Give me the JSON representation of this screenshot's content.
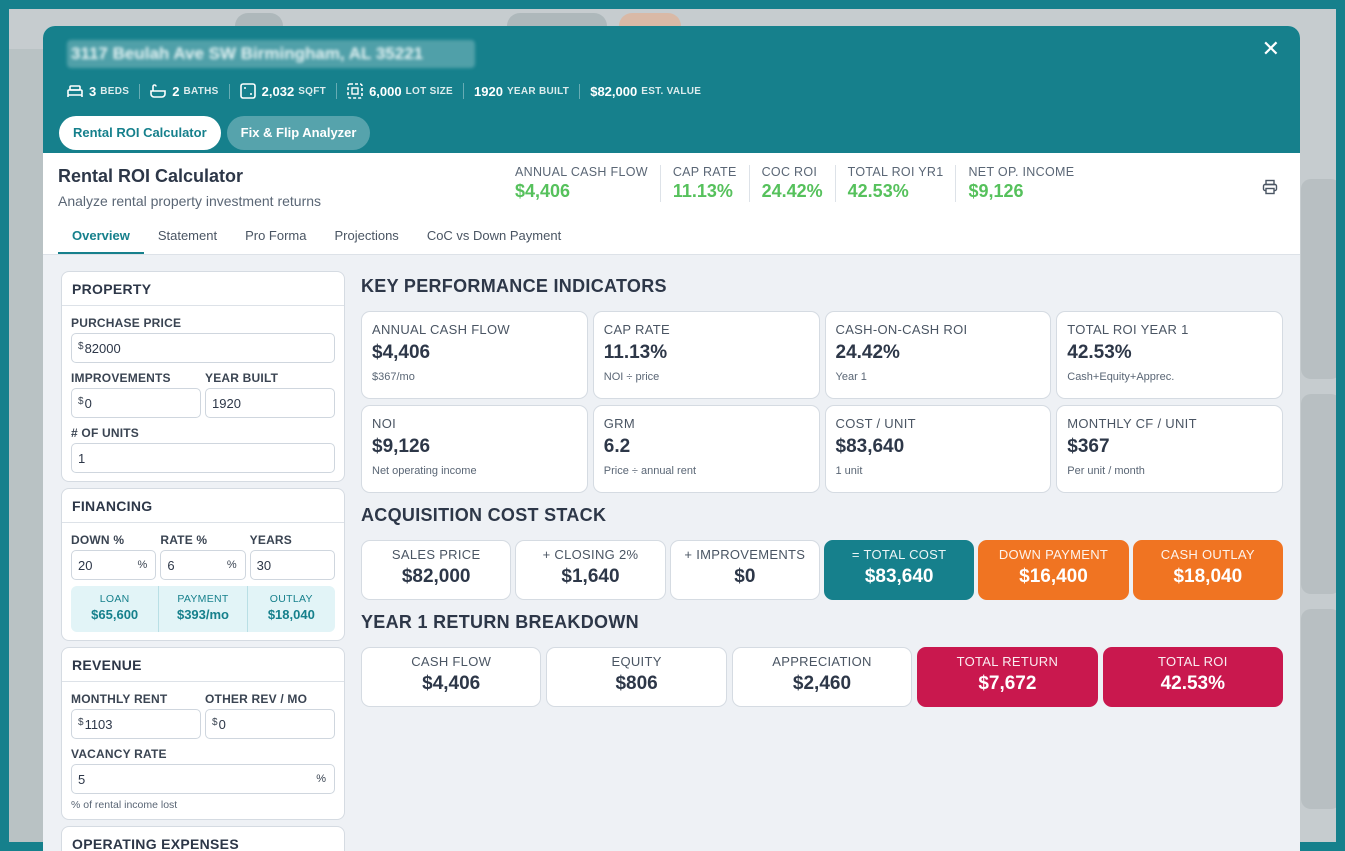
{
  "header": {
    "address": "3117 Beulah Ave SW Birmingham, AL 35221",
    "close_icon": "close-icon",
    "stats": [
      {
        "icon": "bed-icon",
        "value": "3",
        "unit": "BEDS"
      },
      {
        "icon": "bath-icon",
        "value": "2",
        "unit": "BATHS"
      },
      {
        "icon": "sqft-icon",
        "value": "2,032",
        "unit": "SQFT"
      },
      {
        "icon": "lot-icon",
        "value": "6,000",
        "unit": "LOT SIZE"
      },
      {
        "icon": "",
        "value": "1920",
        "unit": "YEAR BUILT"
      },
      {
        "icon": "",
        "value": "$82,000",
        "unit": "EST. VALUE"
      }
    ],
    "tabs": [
      {
        "label": "Rental ROI Calculator",
        "active": true
      },
      {
        "label": "Fix & Flip Analyzer",
        "active": false
      }
    ]
  },
  "title_bar": {
    "title": "Rental ROI Calculator",
    "subtitle": "Analyze rental property investment returns",
    "kpis": [
      {
        "label": "ANNUAL CASH FLOW",
        "value": "$4,406"
      },
      {
        "label": "CAP RATE",
        "value": "11.13%"
      },
      {
        "label": "COC ROI",
        "value": "24.42%"
      },
      {
        "label": "TOTAL ROI YR1",
        "value": "42.53%"
      },
      {
        "label": "NET OP. INCOME",
        "value": "$9,126"
      }
    ],
    "tabs": [
      "Overview",
      "Statement",
      "Pro Forma",
      "Projections",
      "CoC vs Down Payment"
    ],
    "active_tab": "Overview"
  },
  "property": {
    "heading": "PROPERTY",
    "purchase_price_label": "PURCHASE PRICE",
    "purchase_price": "82000",
    "improvements_label": "IMPROVEMENTS",
    "improvements": "0",
    "year_built_label": "YEAR BUILT",
    "year_built": "1920",
    "units_label": "# OF UNITS",
    "units": "1"
  },
  "financing": {
    "heading": "FINANCING",
    "down_label": "DOWN %",
    "down": "20",
    "rate_label": "RATE %",
    "rate": "6",
    "years_label": "YEARS",
    "years": "30",
    "loan_label": "LOAN",
    "loan": "$65,600",
    "payment_label": "PAYMENT",
    "payment": "$393/mo",
    "outlay_label": "OUTLAY",
    "outlay": "$18,040"
  },
  "revenue": {
    "heading": "REVENUE",
    "monthly_rent_label": "MONTHLY RENT",
    "monthly_rent": "1103",
    "other_rev_label": "OTHER REV / MO",
    "other_rev": "0",
    "vacancy_label": "VACANCY RATE",
    "vacancy": "5",
    "vacancy_hint": "% of rental income lost"
  },
  "operating": {
    "heading": "OPERATING EXPENSES"
  },
  "kpi_section": {
    "heading": "KEY PERFORMANCE INDICATORS",
    "cards": [
      {
        "label": "ANNUAL CASH FLOW",
        "value": "$4,406",
        "sub": "$367/mo"
      },
      {
        "label": "CAP RATE",
        "value": "11.13%",
        "sub": "NOI ÷ price"
      },
      {
        "label": "CASH-ON-CASH ROI",
        "value": "24.42%",
        "sub": "Year 1"
      },
      {
        "label": "TOTAL ROI YEAR 1",
        "value": "42.53%",
        "sub": "Cash+Equity+Apprec."
      },
      {
        "label": "NOI",
        "value": "$9,126",
        "sub": "Net operating income"
      },
      {
        "label": "GRM",
        "value": "6.2",
        "sub": "Price ÷ annual rent"
      },
      {
        "label": "COST / UNIT",
        "value": "$83,640",
        "sub": "1 unit"
      },
      {
        "label": "MONTHLY CF / UNIT",
        "value": "$367",
        "sub": "Per unit / month"
      }
    ]
  },
  "acquisition": {
    "heading": "ACQUISITION COST STACK",
    "tiles": [
      {
        "label": "SALES PRICE",
        "value": "$82,000",
        "style": "plain"
      },
      {
        "label": "+ CLOSING 2%",
        "value": "$1,640",
        "style": "plain"
      },
      {
        "label": "+ IMPROVEMENTS",
        "value": "$0",
        "style": "plain"
      },
      {
        "label": "= TOTAL COST",
        "value": "$83,640",
        "style": "teal"
      },
      {
        "label": "DOWN PAYMENT",
        "value": "$16,400",
        "style": "orange"
      },
      {
        "label": "CASH OUTLAY",
        "value": "$18,040",
        "style": "orange"
      }
    ]
  },
  "returns": {
    "heading": "YEAR 1 RETURN BREAKDOWN",
    "tiles": [
      {
        "label": "CASH FLOW",
        "value": "$4,406",
        "style": "plain"
      },
      {
        "label": "EQUITY",
        "value": "$806",
        "style": "plain"
      },
      {
        "label": "APPRECIATION",
        "value": "$2,460",
        "style": "plain"
      },
      {
        "label": "TOTAL RETURN",
        "value": "$7,672",
        "style": "red"
      },
      {
        "label": "TOTAL ROI",
        "value": "42.53%",
        "style": "red"
      }
    ]
  },
  "colors": {
    "teal": "#16808c",
    "green": "#56c15c",
    "orange": "#f07422",
    "crimson": "#c9184e"
  }
}
